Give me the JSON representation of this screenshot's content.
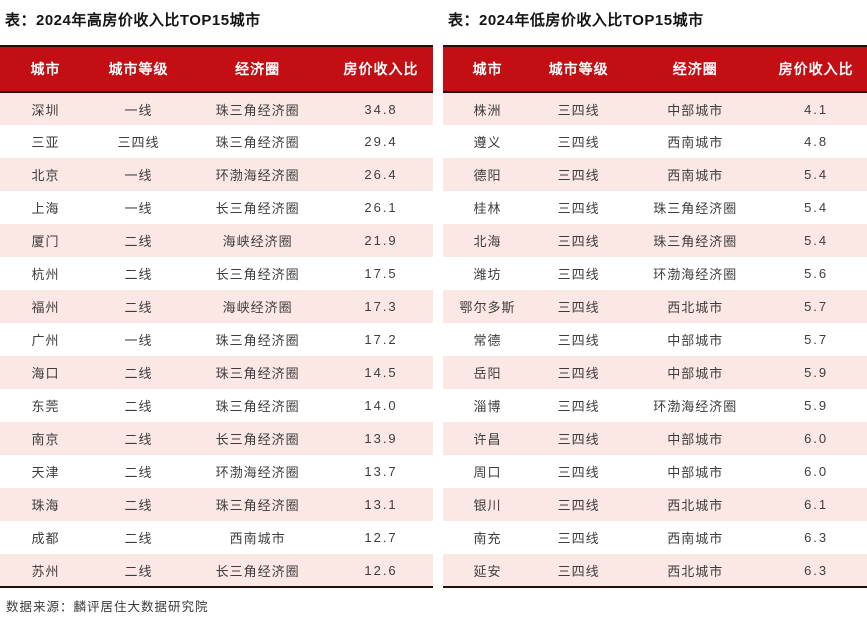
{
  "colors": {
    "header_red": "#c30e14",
    "row_pink": "#fbe7e3",
    "row_white": "#ffffff",
    "border_dark": "#20100d",
    "body_text": "#3d3d3d"
  },
  "tables": [
    {
      "title": "表：2024年高房价收入比TOP15城市",
      "columns": [
        "城市",
        "城市等级",
        "经济圈",
        "房价收入比"
      ],
      "rows": [
        [
          "深圳",
          "一线",
          "珠三角经济圈",
          "34.8"
        ],
        [
          "三亚",
          "三四线",
          "珠三角经济圈",
          "29.4"
        ],
        [
          "北京",
          "一线",
          "环渤海经济圈",
          "26.4"
        ],
        [
          "上海",
          "一线",
          "长三角经济圈",
          "26.1"
        ],
        [
          "厦门",
          "二线",
          "海峡经济圈",
          "21.9"
        ],
        [
          "杭州",
          "二线",
          "长三角经济圈",
          "17.5"
        ],
        [
          "福州",
          "二线",
          "海峡经济圈",
          "17.3"
        ],
        [
          "广州",
          "一线",
          "珠三角经济圈",
          "17.2"
        ],
        [
          "海口",
          "二线",
          "珠三角经济圈",
          "14.5"
        ],
        [
          "东莞",
          "二线",
          "珠三角经济圈",
          "14.0"
        ],
        [
          "南京",
          "二线",
          "长三角经济圈",
          "13.9"
        ],
        [
          "天津",
          "二线",
          "环渤海经济圈",
          "13.7"
        ],
        [
          "珠海",
          "二线",
          "珠三角经济圈",
          "13.1"
        ],
        [
          "成都",
          "二线",
          "西南城市",
          "12.7"
        ],
        [
          "苏州",
          "二线",
          "长三角经济圈",
          "12.6"
        ]
      ]
    },
    {
      "title": "表：2024年低房价收入比TOP15城市",
      "columns": [
        "城市",
        "城市等级",
        "经济圈",
        "房价收入比"
      ],
      "rows": [
        [
          "株洲",
          "三四线",
          "中部城市",
          "4.1"
        ],
        [
          "遵义",
          "三四线",
          "西南城市",
          "4.8"
        ],
        [
          "德阳",
          "三四线",
          "西南城市",
          "5.4"
        ],
        [
          "桂林",
          "三四线",
          "珠三角经济圈",
          "5.4"
        ],
        [
          "北海",
          "三四线",
          "珠三角经济圈",
          "5.4"
        ],
        [
          "潍坊",
          "三四线",
          "环渤海经济圈",
          "5.6"
        ],
        [
          "鄂尔多斯",
          "三四线",
          "西北城市",
          "5.7"
        ],
        [
          "常德",
          "三四线",
          "中部城市",
          "5.7"
        ],
        [
          "岳阳",
          "三四线",
          "中部城市",
          "5.9"
        ],
        [
          "淄博",
          "三四线",
          "环渤海经济圈",
          "5.9"
        ],
        [
          "许昌",
          "三四线",
          "中部城市",
          "6.0"
        ],
        [
          "周口",
          "三四线",
          "中部城市",
          "6.0"
        ],
        [
          "银川",
          "三四线",
          "西北城市",
          "6.1"
        ],
        [
          "南充",
          "三四线",
          "西南城市",
          "6.3"
        ],
        [
          "延安",
          "三四线",
          "西北城市",
          "6.3"
        ]
      ]
    }
  ],
  "footer": {
    "source_label": "数据来源：麟评居住大数据研究院"
  }
}
